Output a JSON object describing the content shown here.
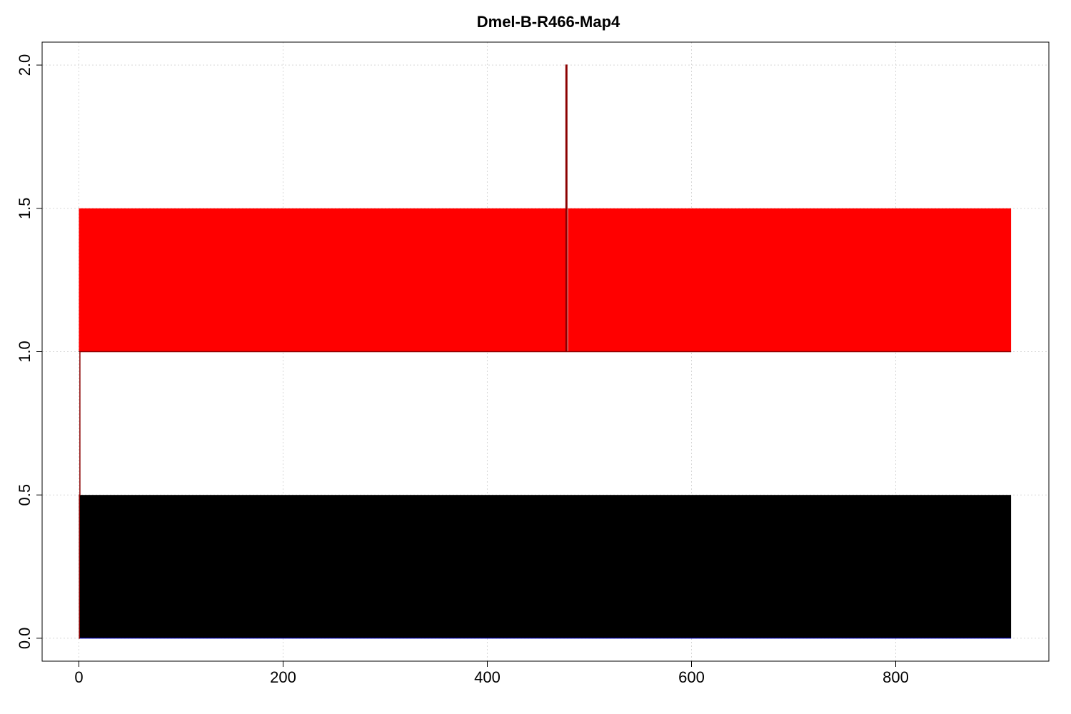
{
  "chart_data": {
    "type": "area",
    "title": "Dmel-B-R466-Map4",
    "xlabel": "",
    "ylabel": "",
    "xlim": [
      -36,
      950
    ],
    "ylim": [
      -0.08,
      2.08
    ],
    "x_ticks": [
      0,
      200,
      400,
      600,
      800
    ],
    "y_ticks": [
      0.0,
      0.5,
      1.0,
      1.5,
      2.0
    ],
    "x_tick_labels": [
      "0",
      "200",
      "400",
      "600",
      "800"
    ],
    "y_tick_labels": [
      "0.0",
      "0.5",
      "1.0",
      "1.5",
      "2.0"
    ],
    "grid": true,
    "legend": "none",
    "series": [
      {
        "color": "#000000",
        "outline_color": "#0000cc",
        "bands": [
          {
            "x": [
              0,
              913
            ],
            "y": [
              0.0,
              0.5
            ]
          }
        ]
      },
      {
        "color": "#ff0000",
        "outline_color": "#000000",
        "bands": [
          {
            "x": [
              0,
              477
            ],
            "y": [
              1.0,
              1.5
            ]
          },
          {
            "x": [
              479,
              913
            ],
            "y": [
              1.0,
              1.5
            ]
          }
        ]
      }
    ],
    "line": {
      "color": "#8b0000",
      "x": [
        0,
        0.5,
        0.5,
        1,
        1,
        477,
        477,
        478,
        478,
        479,
        479,
        913
      ],
      "y": [
        0,
        0,
        0.5,
        0.5,
        1,
        1,
        2,
        2,
        1,
        1,
        1,
        1
      ]
    }
  },
  "colors": {
    "background": "#ffffff",
    "grid": "#d8d8d8",
    "frame": "#000000"
  }
}
